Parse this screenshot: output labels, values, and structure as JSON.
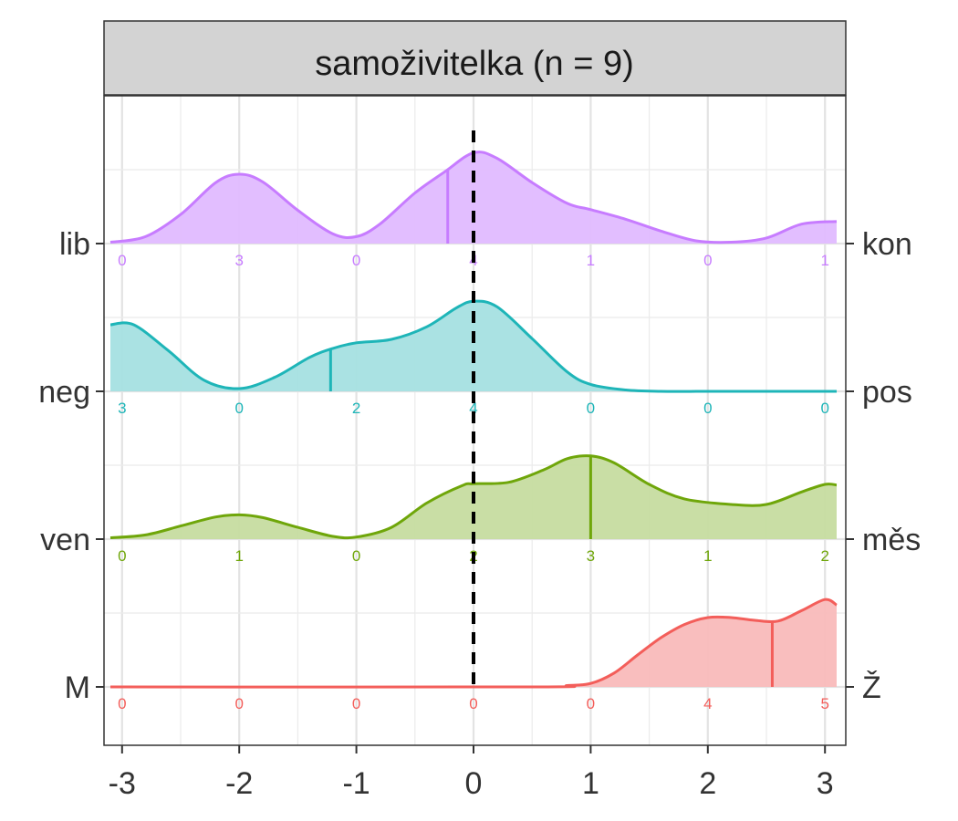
{
  "chart_data": {
    "type": "area",
    "title": "samoživitelka (n = 9)",
    "x_ticks": [
      -3,
      -2,
      -1,
      0,
      1,
      2,
      3
    ],
    "xlim": [
      -3.1,
      3.1
    ],
    "reference_line_x": 0,
    "grid": true,
    "count_positions": [
      -3,
      -2,
      -1,
      0,
      1,
      2,
      3
    ],
    "series": [
      {
        "left_label": "lib",
        "right_label": "kon",
        "color": "#C77CFF",
        "fill": "#E0BBFF",
        "mean": -0.22,
        "counts": [
          0,
          3,
          0,
          4,
          1,
          0,
          1
        ],
        "density": [
          [
            -3.1,
            0.02
          ],
          [
            -2.8,
            0.1
          ],
          [
            -2.5,
            0.42
          ],
          [
            -2.2,
            0.88
          ],
          [
            -2.0,
            1.0
          ],
          [
            -1.8,
            0.89
          ],
          [
            -1.5,
            0.48
          ],
          [
            -1.2,
            0.14
          ],
          [
            -1.0,
            0.1
          ],
          [
            -0.8,
            0.28
          ],
          [
            -0.5,
            0.73
          ],
          [
            -0.25,
            1.03
          ],
          [
            0.0,
            1.31
          ],
          [
            0.2,
            1.23
          ],
          [
            0.5,
            0.88
          ],
          [
            0.8,
            0.58
          ],
          [
            1.0,
            0.49
          ],
          [
            1.3,
            0.35
          ],
          [
            1.6,
            0.18
          ],
          [
            1.9,
            0.04
          ],
          [
            2.2,
            0.02
          ],
          [
            2.5,
            0.08
          ],
          [
            2.8,
            0.28
          ],
          [
            3.1,
            0.32
          ]
        ]
      },
      {
        "left_label": "neg",
        "right_label": "pos",
        "color": "#1EB5B8",
        "fill": "#A5E0E2",
        "mean": -1.22,
        "counts": [
          3,
          0,
          2,
          4,
          0,
          0,
          0
        ],
        "density": [
          [
            -3.1,
            0.96
          ],
          [
            -2.9,
            0.96
          ],
          [
            -2.6,
            0.58
          ],
          [
            -2.3,
            0.16
          ],
          [
            -2.0,
            0.04
          ],
          [
            -1.7,
            0.2
          ],
          [
            -1.4,
            0.49
          ],
          [
            -1.2,
            0.62
          ],
          [
            -1.0,
            0.7
          ],
          [
            -0.7,
            0.75
          ],
          [
            -0.4,
            0.93
          ],
          [
            -0.15,
            1.2
          ],
          [
            0.0,
            1.3
          ],
          [
            0.2,
            1.22
          ],
          [
            0.5,
            0.76
          ],
          [
            0.8,
            0.28
          ],
          [
            1.0,
            0.1
          ],
          [
            1.3,
            0.02
          ],
          [
            1.6,
            0.0
          ],
          [
            2.0,
            0.0
          ],
          [
            2.5,
            0.0
          ],
          [
            3.1,
            0.0
          ]
        ]
      },
      {
        "left_label": "ven",
        "right_label": "měs",
        "color": "#6FA60A",
        "fill": "#C6DCA0",
        "mean": 1.0,
        "counts": [
          0,
          1,
          0,
          2,
          3,
          1,
          2
        ],
        "density": [
          [
            -3.1,
            0.02
          ],
          [
            -2.8,
            0.06
          ],
          [
            -2.5,
            0.19
          ],
          [
            -2.2,
            0.32
          ],
          [
            -2.0,
            0.35
          ],
          [
            -1.8,
            0.31
          ],
          [
            -1.5,
            0.17
          ],
          [
            -1.2,
            0.04
          ],
          [
            -1.0,
            0.03
          ],
          [
            -0.7,
            0.17
          ],
          [
            -0.4,
            0.52
          ],
          [
            -0.1,
            0.77
          ],
          [
            0.0,
            0.8
          ],
          [
            0.3,
            0.82
          ],
          [
            0.6,
            1.0
          ],
          [
            0.8,
            1.16
          ],
          [
            1.0,
            1.2
          ],
          [
            1.2,
            1.1
          ],
          [
            1.5,
            0.79
          ],
          [
            1.8,
            0.58
          ],
          [
            2.2,
            0.5
          ],
          [
            2.5,
            0.5
          ],
          [
            2.8,
            0.68
          ],
          [
            3.0,
            0.79
          ],
          [
            3.1,
            0.78
          ]
        ]
      },
      {
        "left_label": "M",
        "right_label": "Ž",
        "color": "#F35E5A",
        "fill": "#F9BBBA",
        "mean": 2.55,
        "counts": [
          0,
          0,
          0,
          0,
          0,
          4,
          5
        ],
        "density": [
          [
            -3.1,
            0.0
          ],
          [
            0.5,
            0.0
          ],
          [
            0.8,
            0.02
          ],
          [
            1.0,
            0.05
          ],
          [
            1.2,
            0.2
          ],
          [
            1.4,
            0.46
          ],
          [
            1.6,
            0.71
          ],
          [
            1.8,
            0.9
          ],
          [
            2.0,
            1.0
          ],
          [
            2.2,
            1.0
          ],
          [
            2.4,
            0.96
          ],
          [
            2.6,
            0.95
          ],
          [
            2.8,
            1.1
          ],
          [
            3.0,
            1.26
          ],
          [
            3.1,
            1.18
          ]
        ]
      }
    ]
  }
}
